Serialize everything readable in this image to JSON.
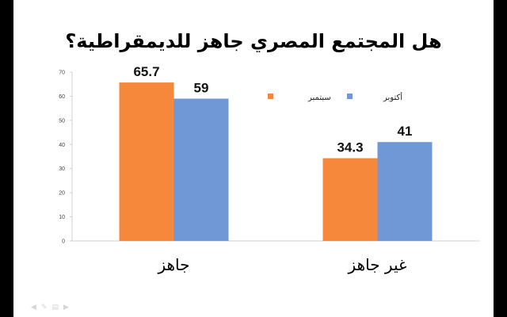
{
  "chart_data": {
    "type": "bar",
    "title": "هل المجتمع المصري جاهز للديمقراطية؟",
    "categories": [
      "جاهز",
      "غير جاهز"
    ],
    "series": [
      {
        "name": "سبتمبر",
        "values": [
          65.7,
          34.3
        ],
        "color": "#f5883a"
      },
      {
        "name": "أكتوبر",
        "values": [
          59,
          41
        ],
        "color": "#7098d6"
      }
    ],
    "ylim": [
      0,
      70
    ],
    "yticks": [
      "0",
      "10",
      "20",
      "30",
      "40",
      "50",
      "60",
      "70"
    ],
    "data_labels": [
      [
        "65.7",
        "34.3"
      ],
      [
        "59",
        "41"
      ]
    ],
    "legend_position": "top-right",
    "grid": false
  },
  "player_controls": [
    "prev-icon",
    "pen-icon",
    "menu-icon",
    "next-icon"
  ]
}
